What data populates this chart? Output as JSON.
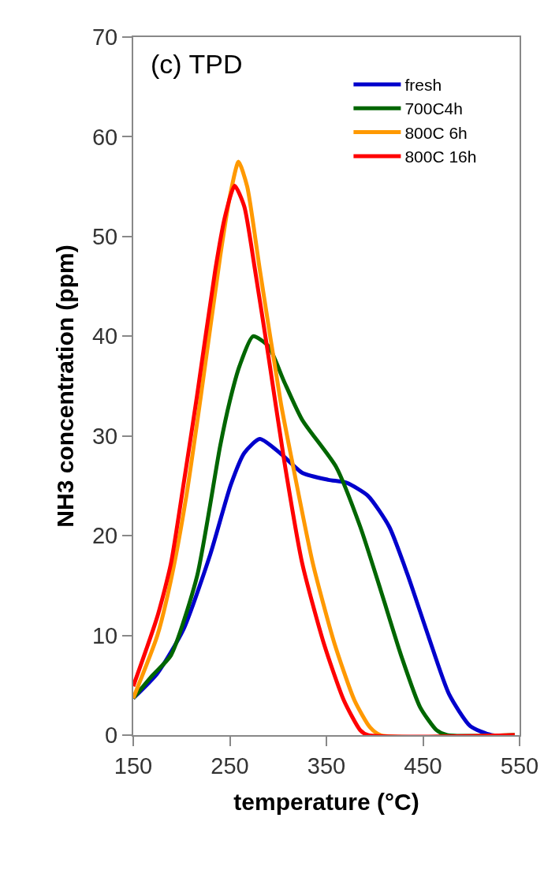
{
  "chart_data": {
    "type": "line",
    "xlabel": "temperature (°C)",
    "ylabel": "NH3 concentration (ppm)",
    "annotations": [
      "(c) TPD"
    ],
    "xlim": [
      150,
      550
    ],
    "xticks": [
      150,
      250,
      350,
      450,
      550
    ],
    "ylim": [
      0,
      70
    ],
    "yticks": [
      0,
      10,
      20,
      30,
      40,
      50,
      60,
      70
    ],
    "grid": false,
    "legend": "top right",
    "marker": "none",
    "line_style": "solid",
    "series": [
      {
        "name": "fresh",
        "color": "#0000cc",
        "x": [
          150,
          175,
          202,
          230,
          251,
          265,
          281,
          303,
          325,
          352,
          371,
          393,
          415,
          434,
          456,
          477,
          499,
          521,
          545
        ],
        "values": [
          3.7,
          6.2,
          10.6,
          18.2,
          25.1,
          28.3,
          29.7,
          28.2,
          26.3,
          25.6,
          25.3,
          24,
          20.9,
          16.1,
          9.8,
          4.1,
          0.9,
          0,
          0
        ]
      },
      {
        "name": "700C4h",
        "color": "#006600",
        "x": [
          150,
          170,
          189,
          216,
          240,
          250,
          260,
          274,
          290,
          306,
          325,
          360,
          385,
          406,
          428,
          447,
          464,
          475,
          545
        ],
        "values": [
          3.7,
          6,
          8,
          15.9,
          29,
          33.5,
          37,
          40,
          39,
          35.5,
          31.6,
          26.9,
          20.9,
          14.6,
          7.8,
          2.8,
          0.5,
          0,
          0
        ]
      },
      {
        "name": "800C 6h",
        "color": "#ff9900",
        "x": [
          150,
          175,
          190,
          205,
          220,
          240,
          250,
          259,
          268,
          281,
          303,
          314,
          336,
          358,
          379,
          395,
          406,
          545
        ],
        "values": [
          3.7,
          10,
          16,
          24,
          34,
          48,
          54,
          57.5,
          55,
          46.7,
          33.2,
          27.7,
          17.2,
          9.3,
          3.5,
          0.8,
          0,
          0
        ]
      },
      {
        "name": "800C 16h",
        "color": "#ff0000",
        "x": [
          150,
          175,
          189,
          202,
          216,
          235,
          245,
          255,
          265,
          276,
          290,
          306,
          325,
          347,
          368,
          385,
          393,
          545
        ],
        "values": [
          4.9,
          11.9,
          17.2,
          25.1,
          34,
          46.7,
          52,
          55.1,
          53,
          46.7,
          38,
          27.7,
          17.2,
          9.3,
          3.5,
          0.5,
          0,
          0
        ]
      }
    ]
  }
}
